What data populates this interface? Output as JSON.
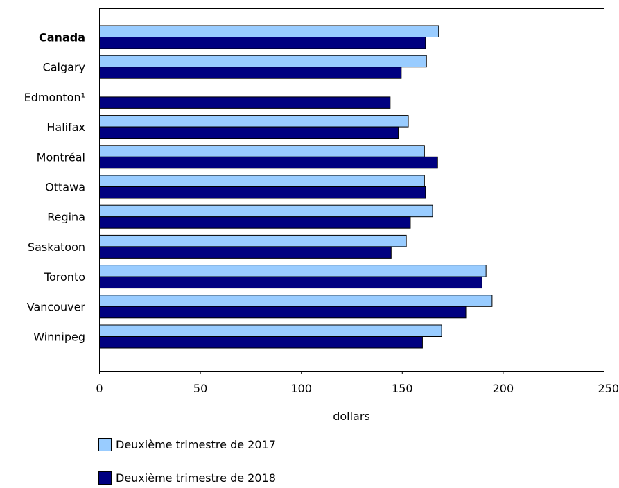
{
  "chart_data": {
    "type": "bar",
    "orientation": "horizontal",
    "categories": [
      "Canada",
      "Calgary",
      "Edmonton¹",
      "Halifax",
      "Montréal",
      "Ottawa",
      "Regina",
      "Saskatoon",
      "Toronto",
      "Vancouver",
      "Winnipeg"
    ],
    "bold_categories": [
      "Canada"
    ],
    "series": [
      {
        "name": "Deuxième trimestre de 2017",
        "color": "#99ccff",
        "values": [
          168,
          162,
          null,
          153,
          161,
          161,
          165,
          152,
          191.5,
          194.5,
          169.5
        ]
      },
      {
        "name": "Deuxième trimestre de 2018",
        "color": "#000080",
        "values": [
          161.5,
          149.5,
          144,
          148,
          167.5,
          161.5,
          154,
          144.5,
          189.5,
          181.5,
          160
        ]
      }
    ],
    "xlabel": "dollars",
    "ylabel": "",
    "title": "",
    "xlim": [
      0,
      250
    ],
    "xticks": [
      "0",
      "50",
      "100",
      "150",
      "200",
      "250"
    ],
    "grid": false,
    "legend_position": "bottom-left"
  }
}
